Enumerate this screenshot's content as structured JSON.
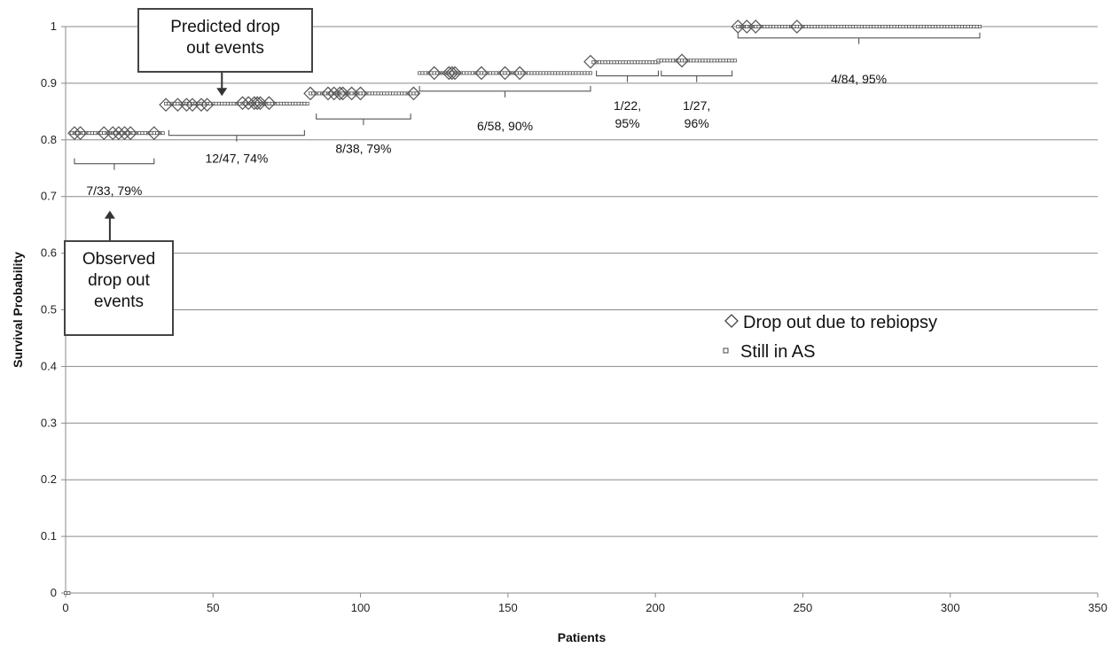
{
  "chart_data": {
    "type": "scatter",
    "xlabel": "Patients",
    "ylabel": "Survival Probability",
    "xlim": [
      0,
      350
    ],
    "ylim": [
      0,
      1
    ],
    "x_ticks": [
      0,
      50,
      100,
      150,
      200,
      250,
      300,
      350
    ],
    "y_ticks": [
      0,
      0.1,
      0.2,
      0.3,
      0.4,
      0.5,
      0.6,
      0.7,
      0.8,
      0.9,
      1
    ],
    "grid": "horizontal",
    "legend_position": "center-right",
    "series": [
      {
        "name": "Drop out due to rebiopsy",
        "marker": "diamond",
        "points": [
          [
            3,
            0.812
          ],
          [
            5,
            0.812
          ],
          [
            13,
            0.812
          ],
          [
            16,
            0.812
          ],
          [
            18,
            0.812
          ],
          [
            20,
            0.812
          ],
          [
            22,
            0.812
          ],
          [
            30,
            0.812
          ],
          [
            34,
            0.862
          ],
          [
            38,
            0.862
          ],
          [
            41,
            0.862
          ],
          [
            43,
            0.862
          ],
          [
            46,
            0.862
          ],
          [
            48,
            0.862
          ],
          [
            60,
            0.865
          ],
          [
            62,
            0.865
          ],
          [
            64,
            0.865
          ],
          [
            65,
            0.865
          ],
          [
            66,
            0.865
          ],
          [
            69,
            0.865
          ],
          [
            83,
            0.882
          ],
          [
            89,
            0.882
          ],
          [
            91,
            0.882
          ],
          [
            93,
            0.882
          ],
          [
            94,
            0.882
          ],
          [
            97,
            0.882
          ],
          [
            100,
            0.882
          ],
          [
            118,
            0.882
          ],
          [
            125,
            0.918
          ],
          [
            130,
            0.918
          ],
          [
            131,
            0.918
          ],
          [
            132,
            0.918
          ],
          [
            141,
            0.918
          ],
          [
            149,
            0.918
          ],
          [
            154,
            0.918
          ],
          [
            178,
            0.938
          ],
          [
            209,
            0.94
          ],
          [
            228,
            1.0
          ],
          [
            231,
            1.0
          ],
          [
            234,
            1.0
          ],
          [
            248,
            1.0
          ]
        ]
      },
      {
        "name": "Still in AS",
        "marker": "square",
        "segments": [
          {
            "x_start": 0,
            "x_end": 1,
            "y": 0
          },
          {
            "x_start": 2,
            "x_end": 33,
            "y": 0.812
          },
          {
            "x_start": 34,
            "x_end": 82,
            "y": 0.864
          },
          {
            "x_start": 83,
            "x_end": 119,
            "y": 0.882
          },
          {
            "x_start": 120,
            "x_end": 178,
            "y": 0.918
          },
          {
            "x_start": 179,
            "x_end": 201,
            "y": 0.937
          },
          {
            "x_start": 201,
            "x_end": 227,
            "y": 0.94
          },
          {
            "x_start": 228,
            "x_end": 310,
            "y": 1.0
          }
        ]
      }
    ],
    "groups": [
      {
        "label": "7/33, 79%",
        "x_start": 3,
        "x_end": 30,
        "y": 0.758,
        "label_y": 0.703
      },
      {
        "label": "12/47, 74%",
        "x_start": 35,
        "x_end": 81,
        "y": 0.808,
        "label_y": 0.76
      },
      {
        "label": "8/38, 79%",
        "x_start": 85,
        "x_end": 117,
        "y": 0.837,
        "label_y": 0.777
      },
      {
        "label": "6/58, 90%",
        "x_start": 120,
        "x_end": 178,
        "y": 0.886,
        "label_y": 0.817
      },
      {
        "label": [
          "1/22,",
          "95%"
        ],
        "x_start": 180,
        "x_end": 201,
        "y": 0.913,
        "label_y": 0.853
      },
      {
        "label": [
          "1/27,",
          "96%"
        ],
        "x_start": 202,
        "x_end": 226,
        "y": 0.913,
        "label_y": 0.853
      },
      {
        "label": "4/84, 95%",
        "x_start": 228,
        "x_end": 310,
        "y": 0.98,
        "label_y": 0.9
      }
    ],
    "annotations": [
      {
        "lines": [
          "Predicted drop",
          "out events"
        ],
        "arrow_to": [
          53,
          0.865
        ]
      },
      {
        "lines": [
          "Observed",
          "drop out",
          "events"
        ],
        "arrow_to": [
          15,
          0.675
        ]
      }
    ]
  }
}
